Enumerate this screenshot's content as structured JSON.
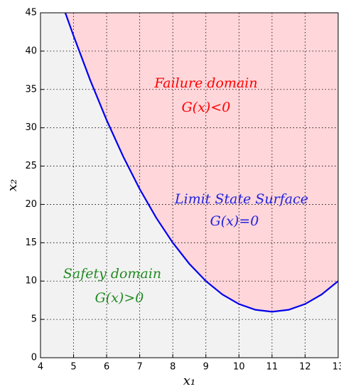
{
  "chart_data": {
    "type": "line",
    "x": [
      4.75,
      5,
      5.5,
      6,
      6.5,
      7,
      7.5,
      8,
      8.5,
      9,
      9.5,
      10,
      10.5,
      11,
      11.5,
      12,
      12.5,
      13
    ],
    "series": [
      {
        "color": "#0000ee",
        "values": [
          45,
          42,
          36.25,
          31,
          26.25,
          22,
          18.25,
          15,
          12.25,
          10,
          8.25,
          7,
          6.25,
          6,
          6.25,
          7,
          8.25,
          10
        ]
      }
    ],
    "fill_above_color": "#ffd6da",
    "fill_below_color": "#f2f2f2",
    "xlabel": "x₁",
    "ylabel": "x₂",
    "xlim": [
      4,
      13
    ],
    "xticks": [
      4,
      5,
      6,
      7,
      8,
      9,
      10,
      11,
      12,
      13
    ],
    "ylim": [
      0,
      45
    ],
    "yticks": [
      0,
      5,
      10,
      15,
      20,
      25,
      30,
      35,
      40,
      45
    ],
    "grid": true,
    "annotations": [
      {
        "text": "Failure domain",
        "color": "#ff0000"
      },
      {
        "text": "G(x)<0",
        "color": "#ff0000"
      },
      {
        "text": "Limit State Surface",
        "color": "#2222dd"
      },
      {
        "text": "G(x)=0",
        "color": "#2222dd"
      },
      {
        "text": "Safety domain",
        "color": "#228b22"
      },
      {
        "text": "G(x)>0",
        "color": "#228b22"
      }
    ]
  }
}
